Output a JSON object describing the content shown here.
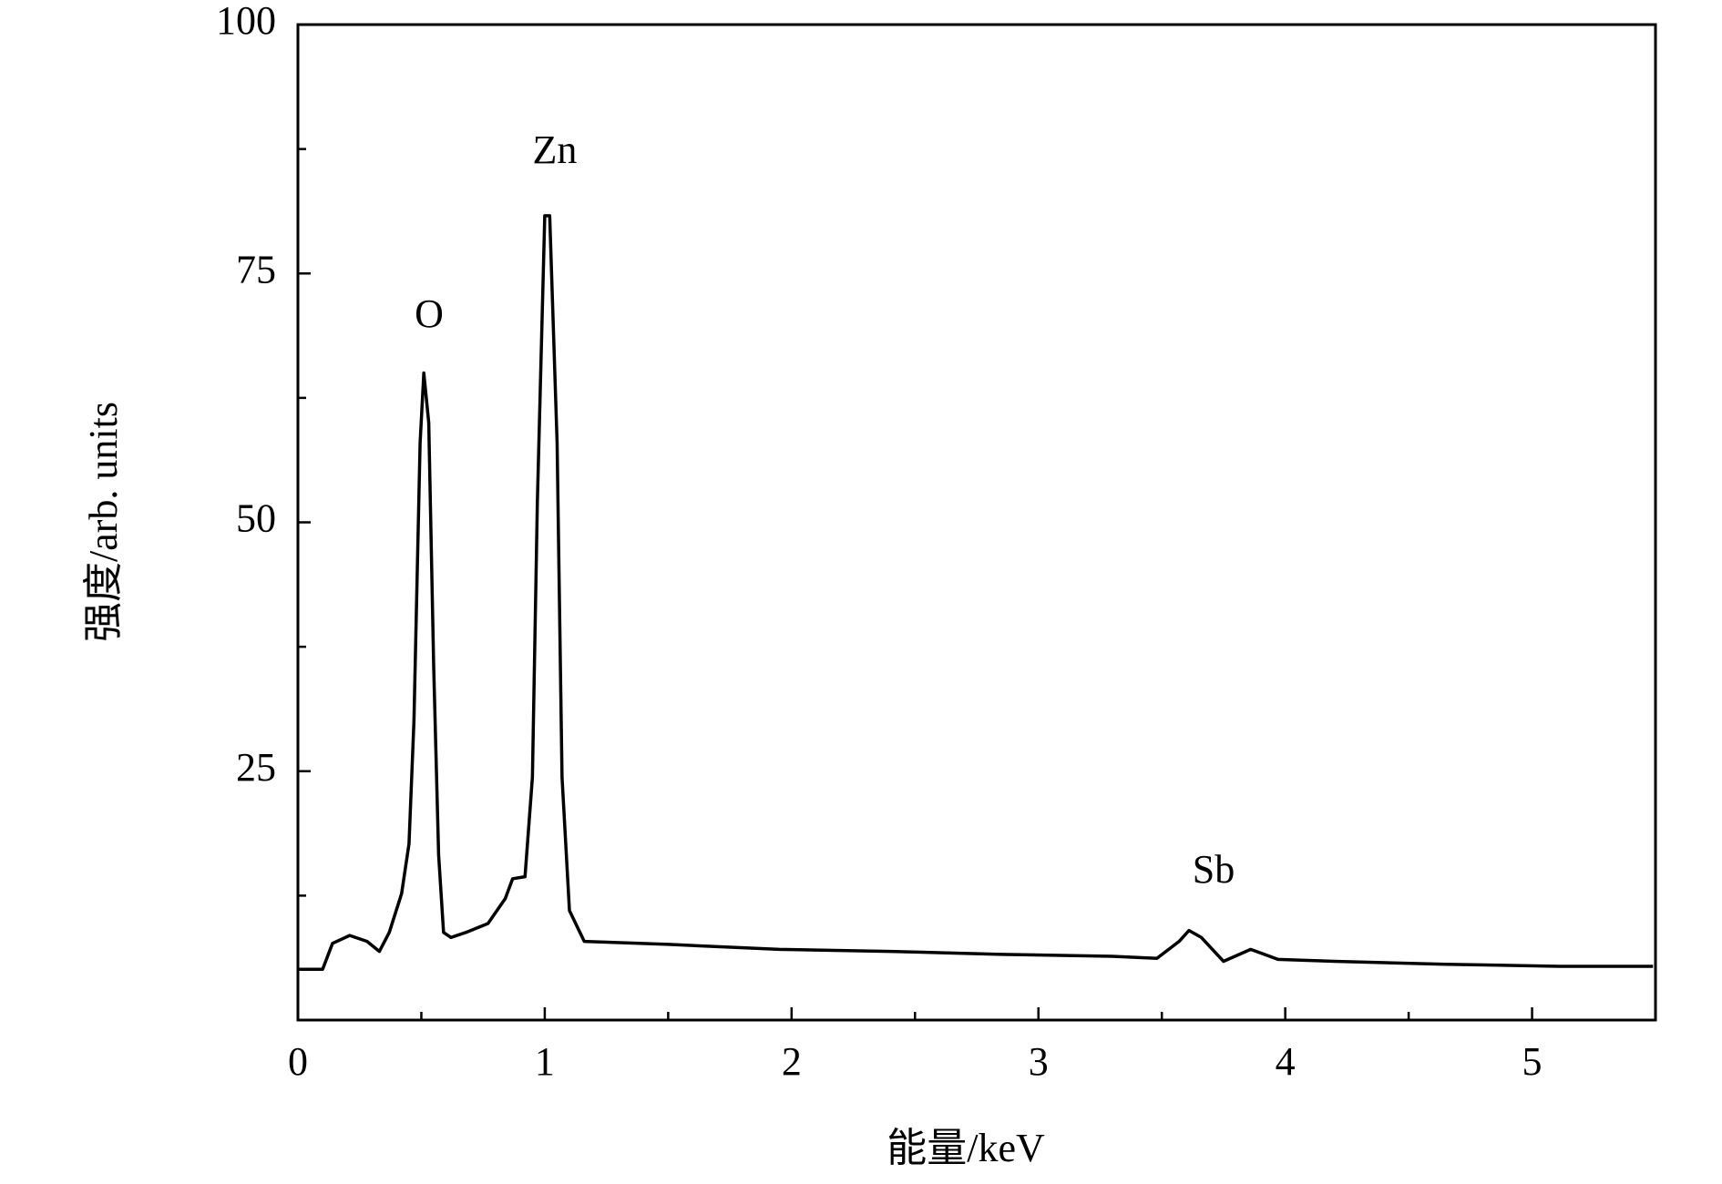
{
  "chart_data": {
    "type": "line",
    "x_label": "能量/keV",
    "y_label": "强度/arb. units",
    "annotations": [
      "O",
      "Zn",
      "Sb"
    ],
    "color": "#000000",
    "x": [
      0,
      0.1,
      0.14,
      0.21,
      0.28,
      0.33,
      0.37,
      0.42,
      0.45,
      0.47,
      0.495,
      0.51,
      0.53,
      0.55,
      0.57,
      0.59,
      0.62,
      0.68,
      0.77,
      0.84,
      0.87,
      0.92,
      0.95,
      0.97,
      1.0,
      1.02,
      1.05,
      1.07,
      1.1,
      1.16,
      1.5,
      1.95,
      2.4,
      2.85,
      3.3,
      3.48,
      3.57,
      3.61,
      3.66,
      3.75,
      3.86,
      3.97,
      4.2,
      4.65,
      5.11,
      5.49
    ],
    "values": [
      5.1,
      5.1,
      7.7,
      8.5,
      7.9,
      6.9,
      8.8,
      12.7,
      17.7,
      30,
      58,
      65,
      60,
      35.5,
      16.6,
      8.8,
      8.3,
      8.8,
      9.7,
      12.2,
      14.2,
      14.4,
      24.4,
      52,
      80.8,
      80.8,
      58,
      24.4,
      11,
      7.9,
      7.6,
      7.1,
      6.9,
      6.6,
      6.4,
      6.2,
      7.9,
      9.0,
      8.3,
      5.9,
      7.1,
      6.1,
      5.9,
      5.6,
      5.4,
      5.4
    ],
    "xlim": [
      0,
      5.5
    ],
    "ylim": [
      0,
      100
    ],
    "xticks": [
      0,
      1,
      2,
      3,
      4,
      5
    ],
    "yticks": [
      25,
      50,
      75,
      100
    ],
    "xminorticks": [
      0.5,
      1.5,
      2.5,
      3.5,
      4.5
    ],
    "yminorticks": [
      12.5,
      37.5,
      62.5,
      87.5
    ],
    "grid": false
  }
}
